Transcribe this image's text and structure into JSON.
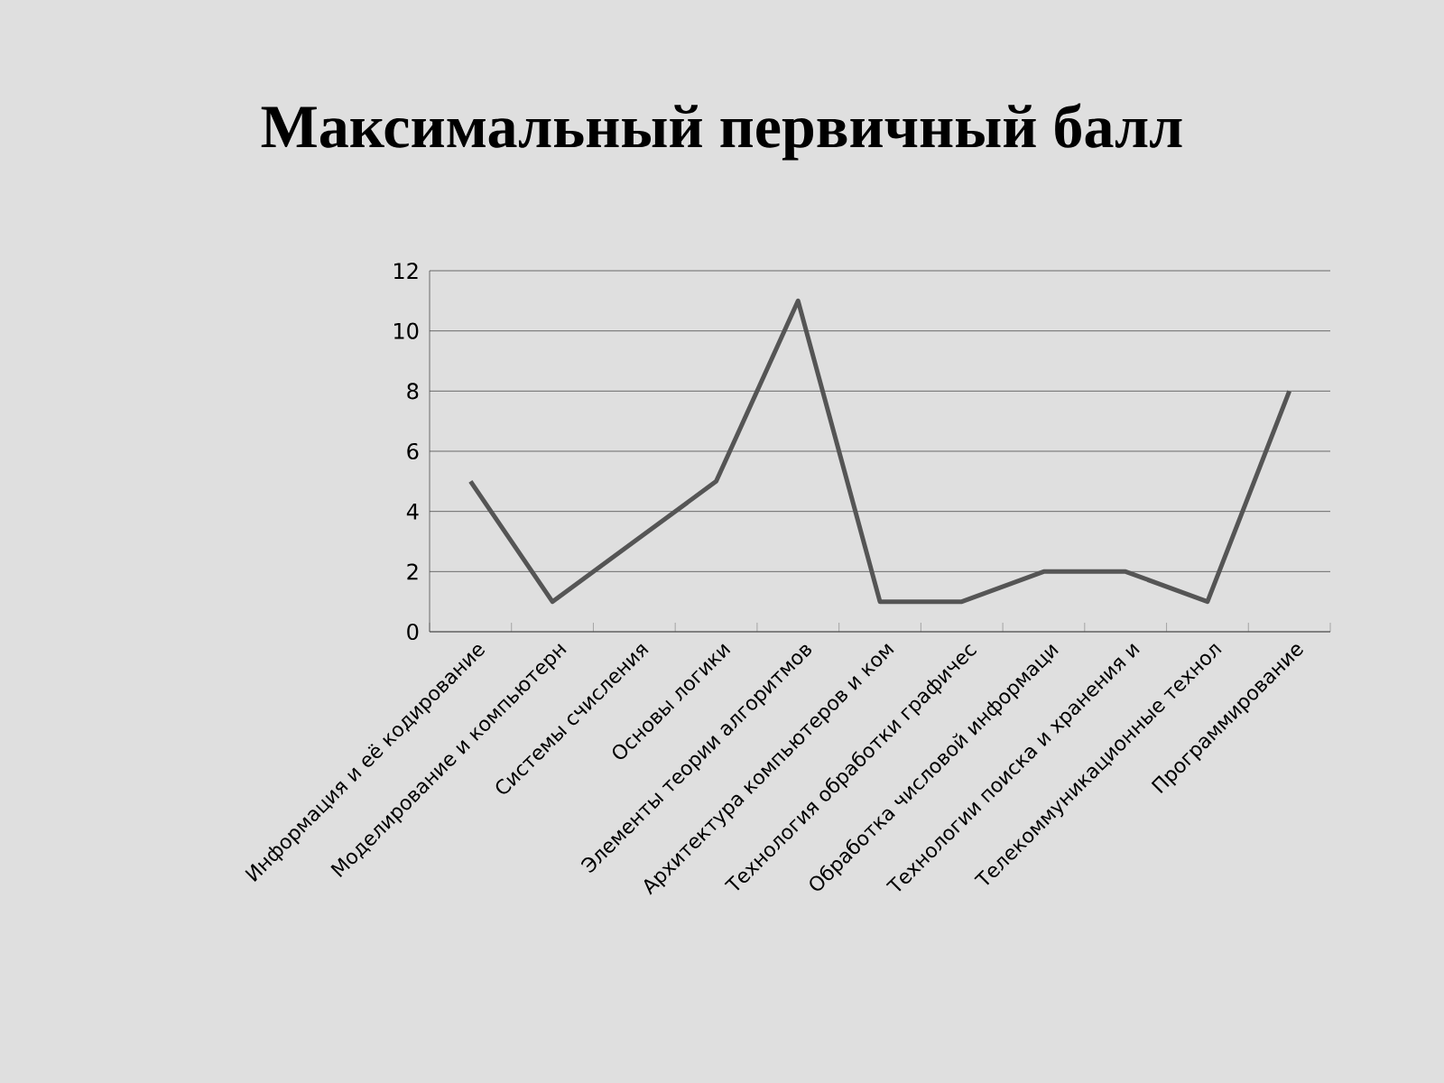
{
  "chart_data": {
    "type": "line",
    "title": "Максимальный первичный балл",
    "categories": [
      "Информация и её кодирование",
      "Моделирование и компьютерн",
      "Системы счисления",
      "Основы логики",
      "Элементы теории алгоритмов",
      "Архитектура компьютеров и ком",
      "Технология обработки графичес",
      "Обработка числовой информаци",
      "Технологии поиска и хранения и",
      "Телекоммуникационные технол",
      "Программирование"
    ],
    "values": [
      5,
      1,
      3,
      5,
      11,
      1,
      1,
      2,
      2,
      1,
      8
    ],
    "color": "#555555",
    "ylim": [
      0,
      12
    ],
    "yticks": [
      0,
      2,
      4,
      6,
      8,
      10,
      12
    ],
    "grid": "y"
  }
}
